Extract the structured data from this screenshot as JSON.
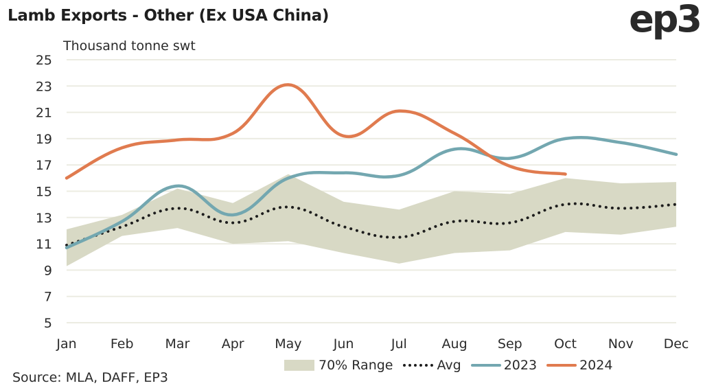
{
  "header": {
    "title": "Lamb Exports - Other (Ex USA China)",
    "logo": "ep3"
  },
  "footer": {
    "source": "Source: MLA, DAFF, EP3"
  },
  "colors": {
    "band": "#D8D9C5",
    "avg": "#1D1D1D",
    "y2023": "#73A7B0",
    "y2024": "#E07B4F",
    "grid": "#ECECE2"
  },
  "chart_data": {
    "type": "line",
    "title": "Lamb Exports - Other (Ex USA China)",
    "xlabel": "",
    "ylabel": "Thousand tonne swt",
    "ylim": [
      5,
      25
    ],
    "yticks": [
      5,
      7,
      9,
      11,
      13,
      15,
      17,
      19,
      21,
      23,
      25
    ],
    "grid": true,
    "legend_position": "bottom-right",
    "categories": [
      "Jan",
      "Feb",
      "Mar",
      "Apr",
      "May",
      "Jun",
      "Jul",
      "Aug",
      "Sep",
      "Oct",
      "Nov",
      "Dec"
    ],
    "band": {
      "name": "70% Range",
      "upper": [
        12.1,
        13.2,
        15.2,
        14.1,
        16.3,
        14.2,
        13.6,
        15.0,
        14.8,
        16.0,
        15.6,
        15.7
      ],
      "lower": [
        9.3,
        11.6,
        12.2,
        11.0,
        11.2,
        10.3,
        9.5,
        10.3,
        10.5,
        11.9,
        11.7,
        12.3
      ]
    },
    "series": [
      {
        "name": "Avg",
        "style": "dotted",
        "values": [
          10.9,
          12.3,
          13.7,
          12.6,
          13.8,
          12.3,
          11.5,
          12.7,
          12.6,
          14.0,
          13.7,
          14.0
        ]
      },
      {
        "name": "2023",
        "style": "solid",
        "values": [
          10.7,
          12.7,
          15.4,
          13.2,
          16.0,
          16.4,
          16.2,
          18.2,
          17.5,
          19.0,
          18.7,
          17.8
        ]
      },
      {
        "name": "2024",
        "style": "solid",
        "values": [
          16.0,
          18.3,
          18.9,
          19.4,
          23.1,
          19.2,
          21.1,
          19.4,
          16.9,
          16.3,
          null,
          null
        ]
      }
    ]
  }
}
